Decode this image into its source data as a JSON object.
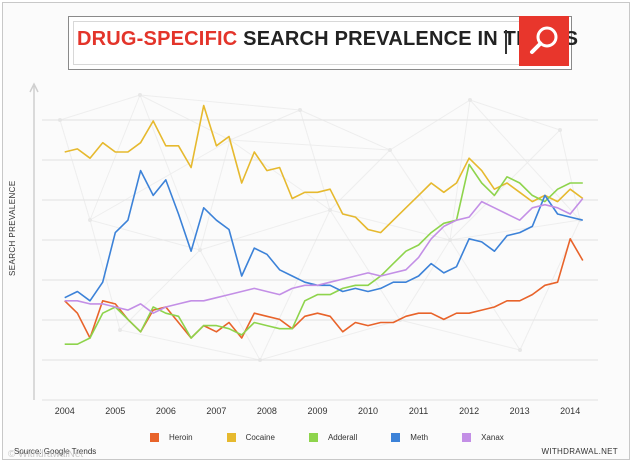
{
  "header": {
    "title_highlight": "DRUG-SPECIFIC",
    "title_rest": "SEARCH PREVALENCE IN THE US",
    "search_icon": "search-icon"
  },
  "footer": {
    "source": "Source: Google Trends",
    "credit": "WITHDRAWAL.NET",
    "watermark": "© WithdrawalNet"
  },
  "chart_data": {
    "type": "line",
    "title": "DRUG-SPECIFIC SEARCH PREVALENCE IN THE US",
    "xlabel": "",
    "ylabel": "SEARCH PREVALENCE",
    "x_ticks": [
      "2004",
      "2005",
      "2006",
      "2007",
      "2008",
      "2009",
      "2010",
      "2011",
      "2012",
      "2013",
      "2014"
    ],
    "xlim": [
      2004,
      2014.3
    ],
    "ylim": [
      0,
      100
    ],
    "grid": "horizontal",
    "legend_position": "bottom",
    "x": [
      2004.0,
      2004.25,
      2004.5,
      2004.75,
      2005.0,
      2005.25,
      2005.5,
      2005.75,
      2006.0,
      2006.25,
      2006.5,
      2006.75,
      2007.0,
      2007.25,
      2007.5,
      2007.75,
      2008.0,
      2008.25,
      2008.5,
      2008.75,
      2009.0,
      2009.25,
      2009.5,
      2009.75,
      2010.0,
      2010.25,
      2010.5,
      2010.75,
      2011.0,
      2011.25,
      2011.5,
      2011.75,
      2012.0,
      2012.25,
      2012.5,
      2012.75,
      2013.0,
      2013.25,
      2013.5,
      2013.75,
      2014.0,
      2014.25
    ],
    "series": [
      {
        "name": "Heroin",
        "color": "#e8632a",
        "values": [
          32,
          28,
          20,
          32,
          31,
          26,
          22,
          29,
          30,
          25,
          20,
          24,
          22,
          25,
          20,
          28,
          27,
          26,
          23,
          27,
          28,
          27,
          22,
          25,
          24,
          25,
          25,
          27,
          28,
          28,
          26,
          28,
          28,
          29,
          30,
          32,
          32,
          34,
          37,
          38,
          52,
          45
        ]
      },
      {
        "name": "Cocaine",
        "color": "#e6b92e",
        "values": [
          80,
          81,
          78,
          83,
          80,
          80,
          83,
          90,
          82,
          82,
          75,
          95,
          82,
          85,
          70,
          80,
          74,
          75,
          65,
          67,
          67,
          68,
          60,
          59,
          55,
          54,
          58,
          62,
          66,
          70,
          67,
          70,
          78,
          74,
          68,
          70,
          67,
          64,
          66,
          64,
          68,
          65
        ]
      },
      {
        "name": "Adderall",
        "color": "#8ed44c",
        "values": [
          18,
          18,
          20,
          28,
          30,
          26,
          22,
          30,
          28,
          27,
          20,
          24,
          24,
          23,
          21,
          25,
          24,
          23,
          23,
          32,
          34,
          34,
          36,
          37,
          37,
          40,
          44,
          48,
          50,
          54,
          57,
          58,
          76,
          70,
          66,
          72,
          70,
          66,
          64,
          68,
          70,
          70
        ]
      },
      {
        "name": "Meth",
        "color": "#3c82d8",
        "values": [
          33,
          35,
          32,
          38,
          54,
          58,
          74,
          66,
          71,
          60,
          48,
          62,
          58,
          55,
          40,
          49,
          47,
          42,
          40,
          38,
          37,
          37,
          35,
          36,
          35,
          36,
          38,
          38,
          40,
          44,
          41,
          43,
          52,
          51,
          48,
          53,
          54,
          56,
          66,
          60,
          59,
          58
        ]
      },
      {
        "name": "Xanax",
        "color": "#c38fe6",
        "values": [
          32,
          32,
          31,
          31,
          30,
          29,
          31,
          28,
          30,
          31,
          32,
          32,
          33,
          34,
          35,
          36,
          35,
          34,
          36,
          37,
          37,
          38,
          39,
          40,
          41,
          40,
          41,
          42,
          46,
          52,
          56,
          58,
          59,
          64,
          62,
          60,
          58,
          62,
          63,
          62,
          60,
          65
        ]
      }
    ]
  }
}
